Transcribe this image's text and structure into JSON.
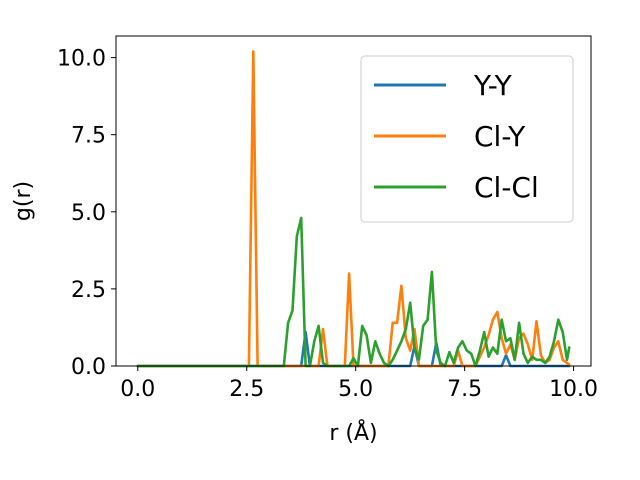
{
  "chart_data": {
    "type": "line",
    "xlabel": "r (Å)",
    "ylabel": "g(r)",
    "xlim": [
      -0.5,
      10.4
    ],
    "ylim": [
      0,
      10.7
    ],
    "xticks": [
      0.0,
      2.5,
      5.0,
      7.5,
      10.0
    ],
    "xtick_labels": [
      "0.0",
      "2.5",
      "5.0",
      "7.5",
      "10.0"
    ],
    "yticks": [
      0.0,
      2.5,
      5.0,
      7.5,
      10.0
    ],
    "ytick_labels": [
      "0.0",
      "2.5",
      "5.0",
      "7.5",
      "10.0"
    ],
    "grid": false,
    "legend_position": "top-right",
    "series": [
      {
        "name": "Y-Y",
        "color": "#1f77b4",
        "x": [
          0,
          3.75,
          3.85,
          3.95,
          6.25,
          6.35,
          6.45,
          6.75,
          6.85,
          6.95,
          8.35,
          8.45,
          8.55,
          9.9
        ],
        "y": [
          0,
          0,
          1.1,
          0,
          0,
          0.65,
          0,
          0,
          0.75,
          0,
          0,
          0.35,
          0,
          0
        ]
      },
      {
        "name": "Cl-Y",
        "color": "#ff7f0e",
        "x": [
          0,
          2.45,
          2.55,
          2.65,
          2.75,
          4.15,
          4.25,
          4.35,
          4.75,
          4.85,
          4.95,
          5.75,
          5.85,
          5.95,
          6.05,
          6.15,
          6.25,
          6.35,
          6.45,
          7.25,
          7.35,
          7.45,
          7.75,
          7.85,
          7.95,
          8.05,
          8.15,
          8.25,
          8.35,
          8.45,
          8.55,
          8.65,
          8.75,
          8.85,
          8.95,
          9.05,
          9.15,
          9.25,
          9.35,
          9.45,
          9.55,
          9.65,
          9.75,
          9.85,
          9.9
        ],
        "y": [
          0,
          0,
          0,
          10.2,
          0,
          0,
          1.2,
          0,
          0,
          3.0,
          0,
          0,
          1.4,
          1.4,
          2.6,
          0.9,
          0.5,
          1.2,
          0,
          0,
          0.5,
          0,
          0,
          0.3,
          0.6,
          1.0,
          1.5,
          1.75,
          0.9,
          0.4,
          0.7,
          0.2,
          0.9,
          1.05,
          0.7,
          0.2,
          1.45,
          0.35,
          0.1,
          0.2,
          0.6,
          0.8,
          0.2,
          0.1,
          0.05
        ]
      },
      {
        "name": "Cl-Cl",
        "color": "#2ca02c",
        "x": [
          0,
          3.35,
          3.45,
          3.55,
          3.65,
          3.75,
          3.85,
          3.95,
          4.05,
          4.15,
          4.25,
          4.35,
          4.45,
          4.85,
          4.95,
          5.05,
          5.15,
          5.25,
          5.35,
          5.45,
          5.55,
          5.65,
          5.75,
          5.85,
          5.95,
          6.05,
          6.15,
          6.25,
          6.35,
          6.45,
          6.55,
          6.65,
          6.75,
          6.85,
          6.95,
          7.05,
          7.15,
          7.25,
          7.35,
          7.45,
          7.55,
          7.65,
          7.75,
          7.85,
          7.95,
          8.05,
          8.15,
          8.25,
          8.35,
          8.45,
          8.55,
          8.65,
          8.75,
          8.85,
          8.95,
          9.05,
          9.15,
          9.25,
          9.35,
          9.45,
          9.55,
          9.65,
          9.75,
          9.85,
          9.9
        ],
        "y": [
          0,
          0,
          1.4,
          1.8,
          4.2,
          4.8,
          0,
          0,
          0.8,
          1.3,
          0.1,
          0,
          0,
          0,
          0.25,
          0,
          1.3,
          1.0,
          0.1,
          0.8,
          0.4,
          0.1,
          0,
          0.2,
          0.5,
          0.8,
          1.2,
          2.05,
          0.6,
          0.2,
          1.3,
          1.5,
          3.05,
          0.5,
          0.1,
          0,
          0.45,
          0.1,
          0.6,
          0.8,
          0.5,
          0.4,
          0,
          0.5,
          1.1,
          0.3,
          0.6,
          0.4,
          1.5,
          0.8,
          0.9,
          0.2,
          1.4,
          0.4,
          0.1,
          0.3,
          0.2,
          0.2,
          0.1,
          0.3,
          0.8,
          1.5,
          1.1,
          0.2,
          0.6
        ]
      }
    ]
  }
}
